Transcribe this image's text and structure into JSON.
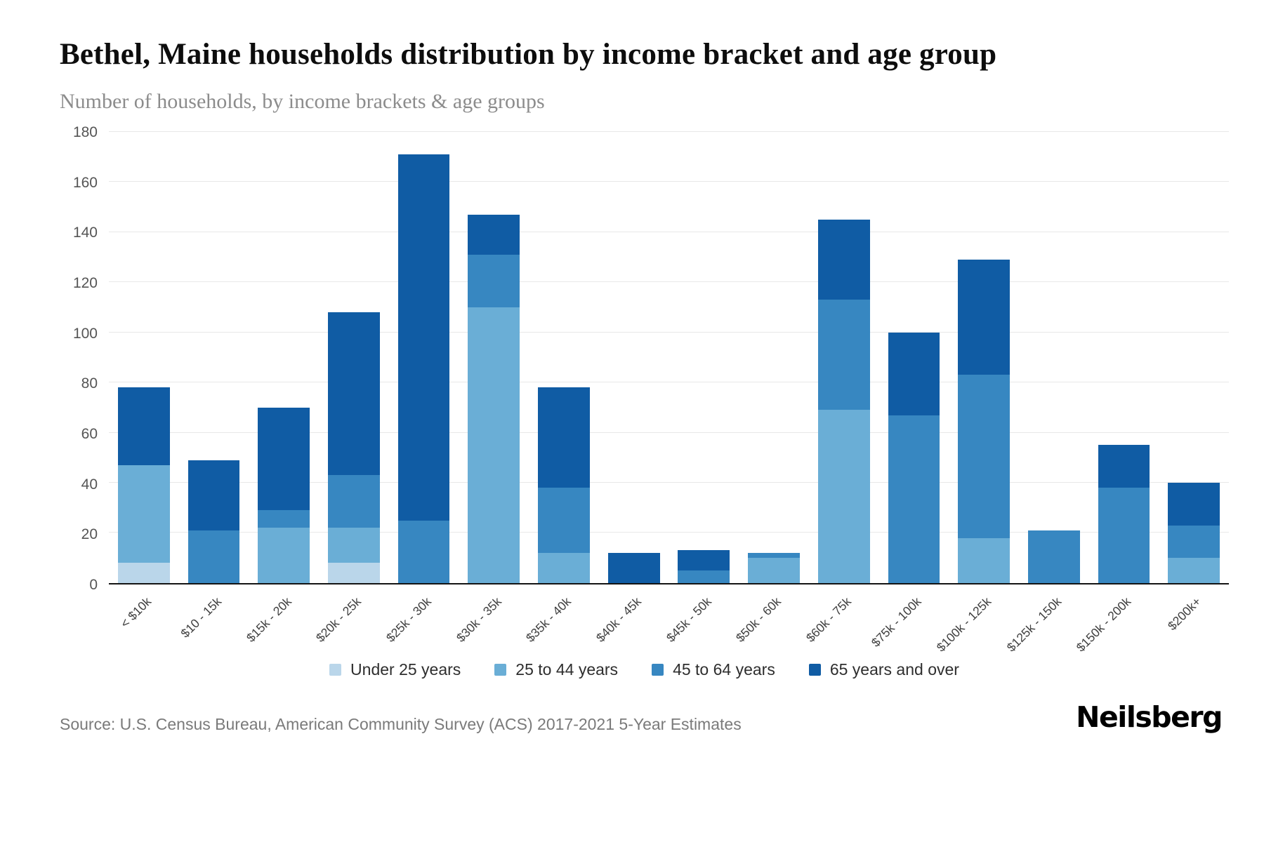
{
  "header": {
    "title": "Bethel, Maine households distribution by income bracket and age group",
    "subtitle": "Number of households, by income brackets & age groups"
  },
  "footer": {
    "source": "Source: U.S. Census Bureau, American Community Survey (ACS) 2017-2021 5-Year Estimates",
    "brand": "Neilsberg"
  },
  "chart_data": {
    "type": "bar",
    "stacked": true,
    "title": "Bethel, Maine households distribution by income bracket and age group",
    "xlabel": "",
    "ylabel": "Number of households",
    "ylim": [
      0,
      180
    ],
    "yticks": [
      0,
      20,
      40,
      60,
      80,
      100,
      120,
      140,
      160,
      180
    ],
    "grid": true,
    "legend_position": "bottom",
    "categories": [
      "< $10k",
      "$10 - 15k",
      "$15k - 20k",
      "$20k - 25k",
      "$25k - 30k",
      "$30k - 35k",
      "$35k - 40k",
      "$40k - 45k",
      "$45k - 50k",
      "$50k - 60k",
      "$60k - 75k",
      "$75k - 100k",
      "$100k - 125k",
      "$125k - 150k",
      "$150k - 200k",
      "$200k+"
    ],
    "series": [
      {
        "name": "Under 25 years",
        "color": "#bad6ea",
        "values": [
          8,
          0,
          0,
          8,
          0,
          0,
          0,
          0,
          0,
          0,
          0,
          0,
          0,
          0,
          0,
          0
        ]
      },
      {
        "name": "25 to 44 years",
        "color": "#6aaed6",
        "values": [
          39,
          0,
          22,
          14,
          0,
          110,
          12,
          0,
          0,
          10,
          69,
          0,
          18,
          0,
          0,
          10
        ]
      },
      {
        "name": "45 to 64 years",
        "color": "#3787c1",
        "values": [
          0,
          21,
          7,
          21,
          25,
          21,
          26,
          0,
          5,
          2,
          44,
          67,
          65,
          21,
          38,
          13
        ]
      },
      {
        "name": "65 years and over",
        "color": "#105ca4",
        "values": [
          31,
          28,
          41,
          65,
          146,
          16,
          40,
          12,
          8,
          0,
          32,
          33,
          46,
          0,
          17,
          17
        ]
      }
    ],
    "totals": [
      78,
      49,
      70,
      108,
      171,
      147,
      78,
      12,
      13,
      12,
      145,
      100,
      129,
      21,
      55,
      40
    ]
  }
}
